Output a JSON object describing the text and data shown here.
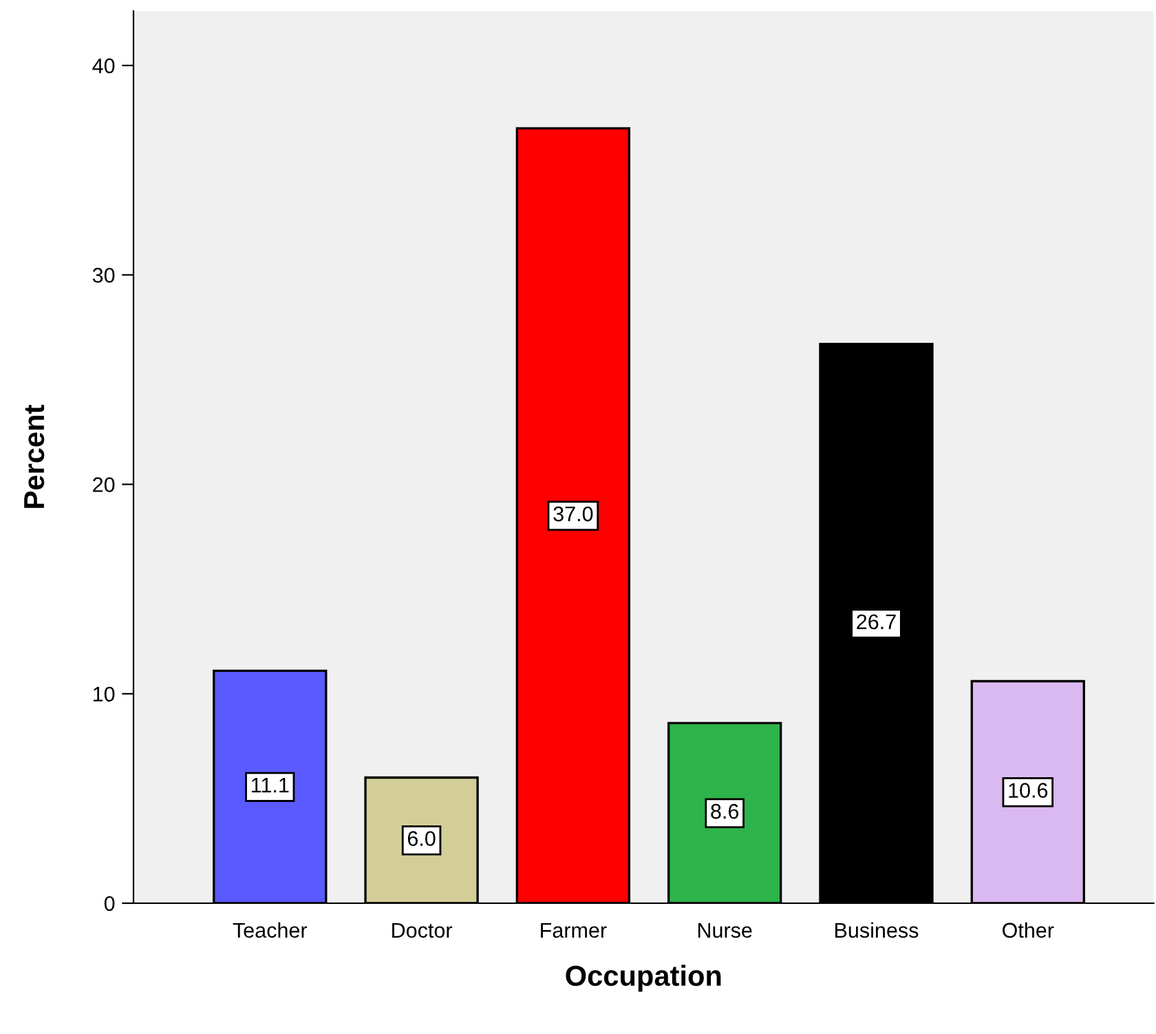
{
  "chart_data": {
    "type": "bar",
    "xlabel": "Occupation",
    "ylabel": "Percent",
    "categories": [
      "Teacher",
      "Doctor",
      "Farmer",
      "Nurse",
      "Business",
      "Other"
    ],
    "values": [
      11.1,
      6.0,
      37.0,
      8.6,
      26.7,
      10.6
    ],
    "colors": [
      "#5a5aff",
      "#d3ce97",
      "#ff0000",
      "#2db44a",
      "#000000",
      "#dab8f0"
    ],
    "value_labels": [
      "11.1",
      "6.0",
      "37.0",
      "8.6",
      "26.7",
      "10.6"
    ],
    "ylim": [
      0,
      42.6
    ],
    "yticks": [
      0,
      10,
      20,
      30,
      40
    ],
    "grid": false,
    "legend": false
  }
}
